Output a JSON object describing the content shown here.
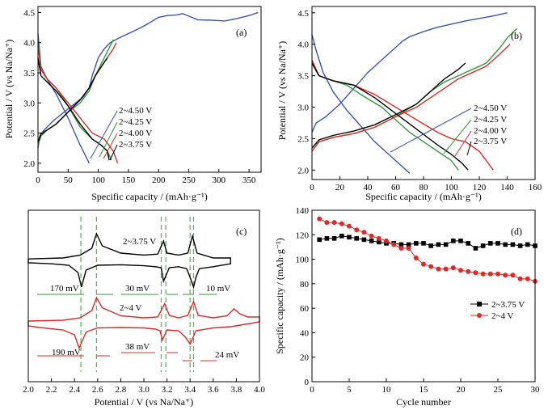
{
  "chart_data": [
    {
      "id": "a",
      "type": "line",
      "panel_label": "(a)",
      "xlabel": "Specific capacity / (mAh·g⁻¹)",
      "ylabel": "Potential / V (vs Na/Na⁺)",
      "xlim": [
        0,
        370
      ],
      "ylim": [
        1.85,
        4.6
      ],
      "xticks": [
        0,
        50,
        100,
        150,
        200,
        250,
        300,
        350
      ],
      "yticks": [
        2.0,
        2.5,
        3.0,
        3.5,
        4.0,
        4.5
      ],
      "legend": [
        "2~4.50 V",
        "2~4.25 V",
        "2~4.00 V",
        "2~3.75 V"
      ],
      "series": [
        {
          "name": "2~4.50 V",
          "color": "#3a55b4",
          "x": [
            0,
            3,
            10,
            25,
            50,
            75,
            85,
            90,
            95,
            100,
            110,
            120,
            135,
            150,
            165,
            180,
            200,
            215,
            230,
            240,
            250,
            265,
            290,
            310,
            330,
            350,
            365
          ],
          "y": [
            2.25,
            2.45,
            2.55,
            2.7,
            2.9,
            3.1,
            3.25,
            3.45,
            3.6,
            3.75,
            3.9,
            4.0,
            4.08,
            4.15,
            4.22,
            4.3,
            4.42,
            4.45,
            4.46,
            4.48,
            4.44,
            4.38,
            4.37,
            4.36,
            4.4,
            4.45,
            4.5
          ]
        },
        {
          "name": "2~4.50 V discharge",
          "color": "#3a55b4",
          "x": [
            0,
            5,
            15,
            30,
            50,
            70,
            85
          ],
          "y": [
            4.15,
            3.6,
            3.4,
            3.15,
            2.75,
            2.3,
            2.0
          ]
        },
        {
          "name": "2~4.25 V",
          "color": "#2e9a3c",
          "x": [
            0,
            5,
            15,
            30,
            50,
            70,
            85,
            95,
            105,
            115,
            125
          ],
          "y": [
            2.3,
            2.45,
            2.55,
            2.65,
            2.85,
            3.0,
            3.2,
            3.45,
            3.65,
            3.85,
            4.05
          ]
        },
        {
          "name": "2~4.25 V discharge",
          "color": "#2e9a3c",
          "x": [
            0,
            5,
            15,
            30,
            50,
            70,
            90,
            105,
            115,
            122
          ],
          "y": [
            4.05,
            3.55,
            3.4,
            3.25,
            2.95,
            2.6,
            2.4,
            2.3,
            2.2,
            2.05
          ]
        },
        {
          "name": "2~4.00 V",
          "color": "#e02a2a",
          "x": [
            0,
            5,
            15,
            30,
            50,
            70,
            85,
            95,
            105,
            115,
            125,
            130
          ],
          "y": [
            2.35,
            2.5,
            2.55,
            2.65,
            2.85,
            3.05,
            3.25,
            3.45,
            3.6,
            3.75,
            3.9,
            4.0
          ]
        },
        {
          "name": "2~4.00 V discharge",
          "color": "#e02a2a",
          "x": [
            0,
            5,
            15,
            30,
            50,
            70,
            90,
            110,
            125,
            132
          ],
          "y": [
            3.95,
            3.55,
            3.4,
            3.25,
            3.0,
            2.75,
            2.5,
            2.4,
            2.2,
            2.0
          ]
        },
        {
          "name": "2~3.75 V",
          "color": "#000000",
          "x": [
            0,
            5,
            15,
            30,
            50,
            70,
            85,
            95,
            105,
            115
          ],
          "y": [
            2.35,
            2.48,
            2.55,
            2.65,
            2.85,
            3.05,
            3.25,
            3.45,
            3.6,
            3.75
          ]
        },
        {
          "name": "2~3.75 V discharge",
          "color": "#000000",
          "x": [
            0,
            5,
            15,
            30,
            50,
            70,
            90,
            105,
            115,
            118
          ],
          "y": [
            3.75,
            3.45,
            3.35,
            3.2,
            2.95,
            2.65,
            2.4,
            2.3,
            2.2,
            2.05
          ]
        }
      ]
    },
    {
      "id": "b",
      "type": "line",
      "panel_label": "(b)",
      "xlabel": "Specific capacity / (mAh·g⁻¹)",
      "ylabel": "Potential / V (vs Na/Na⁺)",
      "xlim": [
        0,
        160
      ],
      "ylim": [
        1.85,
        4.6
      ],
      "xticks": [
        0,
        20,
        40,
        60,
        80,
        100,
        120,
        140,
        160
      ],
      "yticks": [
        2.0,
        2.5,
        3.0,
        3.5,
        4.0,
        4.5
      ],
      "legend": [
        "2~4.50 V",
        "2~4.25 V",
        "2~4.00 V",
        "2~3.75 V"
      ],
      "series": [
        {
          "name": "2~4.50 V",
          "color": "#3a55b4",
          "x": [
            0,
            3,
            10,
            20,
            30,
            40,
            50,
            60,
            65,
            70,
            80,
            90,
            100,
            110,
            120,
            130,
            140
          ],
          "y": [
            2.6,
            2.75,
            2.85,
            3.05,
            3.3,
            3.55,
            3.75,
            3.95,
            4.05,
            4.12,
            4.2,
            4.27,
            4.32,
            4.37,
            4.41,
            4.45,
            4.5
          ]
        },
        {
          "name": "2~4.50 V discharge",
          "color": "#3a55b4",
          "x": [
            0,
            3,
            8,
            15,
            25,
            35,
            45,
            55,
            65,
            70
          ],
          "y": [
            4.15,
            3.9,
            3.55,
            3.25,
            2.95,
            2.7,
            2.45,
            2.25,
            2.05,
            1.95
          ]
        },
        {
          "name": "2~4.25 V",
          "color": "#2e9a3c",
          "x": [
            0,
            5,
            15,
            30,
            45,
            60,
            75,
            85,
            95,
            105,
            115,
            125,
            135,
            140,
            147
          ],
          "y": [
            2.3,
            2.45,
            2.52,
            2.58,
            2.68,
            2.85,
            3.05,
            3.25,
            3.4,
            3.5,
            3.6,
            3.7,
            3.95,
            4.1,
            4.25
          ]
        },
        {
          "name": "2~4.25 V discharge",
          "color": "#2e9a3c",
          "x": [
            0,
            5,
            15,
            25,
            35,
            50,
            60,
            70,
            80,
            90,
            100,
            105
          ],
          "y": [
            3.7,
            3.5,
            3.42,
            3.35,
            3.2,
            3.0,
            2.8,
            2.6,
            2.45,
            2.3,
            2.15,
            2.0
          ]
        },
        {
          "name": "2~4.00 V",
          "color": "#e02a2a",
          "x": [
            0,
            5,
            15,
            30,
            45,
            60,
            75,
            85,
            95,
            105,
            115,
            125,
            135,
            142
          ],
          "y": [
            2.3,
            2.45,
            2.52,
            2.58,
            2.68,
            2.85,
            3.0,
            3.15,
            3.3,
            3.45,
            3.55,
            3.65,
            3.85,
            4.0
          ]
        },
        {
          "name": "2~4.00 V discharge",
          "color": "#e02a2a",
          "x": [
            0,
            5,
            15,
            30,
            45,
            60,
            75,
            90,
            100,
            110,
            120,
            130
          ],
          "y": [
            3.75,
            3.5,
            3.42,
            3.35,
            3.2,
            3.0,
            2.8,
            2.6,
            2.5,
            2.45,
            2.3,
            2.0
          ]
        },
        {
          "name": "2~3.75 V",
          "color": "#000000",
          "x": [
            0,
            5,
            15,
            30,
            45,
            60,
            75,
            85,
            95,
            105,
            110
          ],
          "y": [
            2.35,
            2.48,
            2.55,
            2.62,
            2.72,
            2.88,
            3.05,
            3.25,
            3.45,
            3.6,
            3.7
          ]
        },
        {
          "name": "2~3.75 V discharge",
          "color": "#000000",
          "x": [
            0,
            5,
            15,
            30,
            45,
            60,
            75,
            90,
            100,
            108,
            112
          ],
          "y": [
            3.7,
            3.5,
            3.42,
            3.35,
            3.15,
            2.9,
            2.65,
            2.4,
            2.25,
            2.1,
            2.0
          ]
        }
      ]
    },
    {
      "id": "c",
      "type": "line",
      "panel_label": "(c)",
      "xlabel": "Potential / V (vs Na/Na⁺)",
      "xlim": [
        2.0,
        4.0
      ],
      "xticks": [
        2.0,
        2.2,
        2.4,
        2.6,
        2.8,
        3.0,
        3.2,
        3.4,
        3.6,
        3.8,
        4.0
      ],
      "labels": {
        "top_curve": "2~3.75 V",
        "bottom_curve": "2~4 V",
        "gap_top": [
          "170 mV",
          "30 mV",
          "10 mV"
        ],
        "gap_bottom": [
          "190 mV",
          "38 mV",
          "24 mV"
        ]
      },
      "peak_lines": [
        2.455,
        2.59,
        3.15,
        3.19,
        3.4,
        3.43
      ],
      "series": [
        {
          "name": "2~3.75 V",
          "color": "#000000",
          "x": [
            2.0,
            2.3,
            2.45,
            2.55,
            2.59,
            2.64,
            2.8,
            3.0,
            3.12,
            3.17,
            3.2,
            3.3,
            3.38,
            3.42,
            3.46,
            3.6,
            3.75,
            3.75,
            3.6,
            3.48,
            3.45,
            3.43,
            3.4,
            3.37,
            3.3,
            3.22,
            3.17,
            3.15,
            3.1,
            3.0,
            2.8,
            2.6,
            2.5,
            2.46,
            2.43,
            2.35,
            2.2,
            2.0,
            2.0
          ],
          "y": [
            0.08,
            0.1,
            0.16,
            0.3,
            0.6,
            0.35,
            0.2,
            0.16,
            0.18,
            0.45,
            0.2,
            0.16,
            0.2,
            0.55,
            0.2,
            0.1,
            0.1,
            -0.02,
            -0.08,
            -0.12,
            -0.3,
            -0.5,
            -0.3,
            -0.12,
            -0.08,
            -0.1,
            -0.38,
            -0.1,
            -0.08,
            -0.06,
            -0.04,
            -0.05,
            -0.15,
            -0.5,
            -0.2,
            -0.05,
            -0.02,
            0.0,
            0.08
          ]
        },
        {
          "name": "2~4 V",
          "color": "#e02a2a",
          "x": [
            2.0,
            2.3,
            2.45,
            2.55,
            2.59,
            2.64,
            2.8,
            3.0,
            3.12,
            3.18,
            3.22,
            3.3,
            3.38,
            3.43,
            3.47,
            3.6,
            3.72,
            3.78,
            3.83,
            3.9,
            4.0,
            4.0,
            3.9,
            3.75,
            3.6,
            3.45,
            3.42,
            3.4,
            3.36,
            3.3,
            3.2,
            3.16,
            3.14,
            3.1,
            3.0,
            2.8,
            2.6,
            2.5,
            2.44,
            2.4,
            2.3,
            2.1,
            2.0,
            2.0
          ],
          "y": [
            0.12,
            0.14,
            0.2,
            0.38,
            0.7,
            0.45,
            0.25,
            0.2,
            0.22,
            0.55,
            0.26,
            0.2,
            0.26,
            0.6,
            0.26,
            0.2,
            0.25,
            0.42,
            0.3,
            0.22,
            0.22,
            0.1,
            0.05,
            -0.02,
            -0.05,
            -0.12,
            -0.32,
            -0.45,
            -0.28,
            -0.12,
            -0.1,
            -0.35,
            -0.12,
            -0.08,
            -0.05,
            -0.04,
            -0.05,
            -0.15,
            -0.55,
            -0.22,
            -0.1,
            -0.04,
            0.0,
            0.12
          ]
        }
      ]
    },
    {
      "id": "d",
      "type": "scatter",
      "panel_label": "(d)",
      "xlabel": "Cycle number",
      "ylabel": "Specific capacity / (mAh·g⁻¹)",
      "xlim": [
        0,
        30
      ],
      "ylim": [
        0,
        140
      ],
      "xticks": [
        0,
        5,
        10,
        15,
        20,
        25,
        30
      ],
      "yticks": [
        0,
        20,
        40,
        60,
        80,
        100,
        120,
        140
      ],
      "legend_position": "center-right",
      "series": [
        {
          "name": "2~3.75 V",
          "color": "#000000",
          "marker": "square",
          "x": [
            1,
            2,
            3,
            4,
            5,
            6,
            7,
            8,
            9,
            10,
            11,
            12,
            13,
            14,
            15,
            16,
            17,
            18,
            19,
            20,
            21,
            22,
            23,
            24,
            25,
            26,
            27,
            28,
            29,
            30
          ],
          "y": [
            116,
            117,
            117,
            119,
            118,
            117,
            116,
            115,
            114,
            113,
            113,
            112,
            112,
            113,
            113,
            111,
            112,
            112,
            115,
            115,
            113,
            109,
            111,
            113,
            113,
            112,
            112,
            111,
            112,
            111
          ]
        },
        {
          "name": "2~4 V",
          "color": "#e02a2a",
          "marker": "circle",
          "x": [
            1,
            2,
            3,
            4,
            5,
            6,
            7,
            8,
            9,
            10,
            11,
            12,
            13,
            14,
            15,
            16,
            17,
            18,
            19,
            20,
            21,
            22,
            23,
            24,
            25,
            26,
            27,
            28,
            29,
            30
          ],
          "y": [
            133,
            130,
            130,
            129,
            127,
            124,
            122,
            119,
            117,
            115,
            112,
            109,
            109,
            101,
            96,
            94,
            92,
            92,
            93,
            91,
            90,
            89,
            88,
            88,
            88,
            87,
            87,
            84,
            84,
            82
          ]
        }
      ]
    }
  ]
}
